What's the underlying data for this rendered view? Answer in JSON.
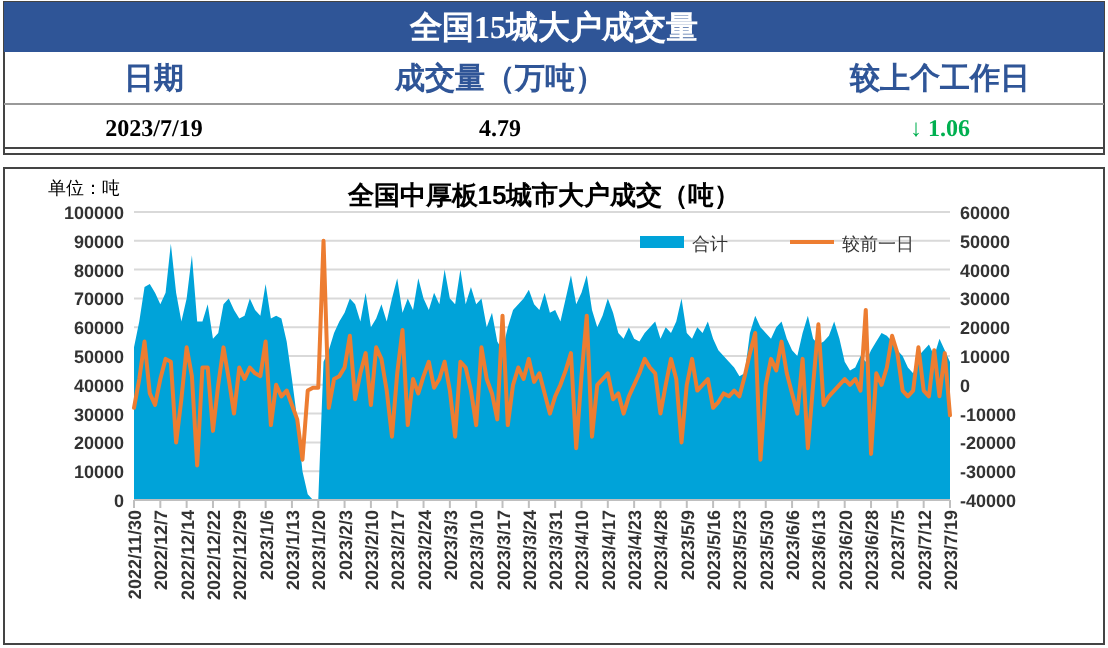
{
  "chart_data": [
    {
      "type": "other",
      "title": "全国15城大户成交量",
      "annotations": [
        "日期",
        "成交量（万吨）",
        "较上个工作日",
        "2023/7/19",
        "4.79",
        "↓ 1.06"
      ]
    },
    {
      "type": "area",
      "title": "全国中厚板15城市大户成交（吨）",
      "ylabel": "单位：吨",
      "categories": [
        "2022/11/30",
        null,
        null,
        null,
        null,
        "2022/12/7",
        null,
        null,
        null,
        null,
        "2022/12/14",
        null,
        null,
        null,
        null,
        "2022/12/22",
        null,
        null,
        null,
        null,
        "2022/12/29",
        null,
        null,
        null,
        null,
        "2023/1/6",
        null,
        null,
        null,
        null,
        "2023/1/13",
        null,
        null,
        null,
        null,
        "2023/1/20",
        null,
        null,
        null,
        null,
        "2023/2/3",
        null,
        null,
        null,
        null,
        "2023/2/10",
        null,
        null,
        null,
        null,
        "2023/2/17",
        null,
        null,
        null,
        null,
        "2023/2/24",
        null,
        null,
        null,
        null,
        "2023/3/3",
        null,
        null,
        null,
        null,
        "2023/3/10",
        null,
        null,
        null,
        null,
        "2023/3/17",
        null,
        null,
        null,
        null,
        "2023/3/24",
        null,
        null,
        null,
        null,
        "2023/3/31",
        null,
        null,
        null,
        null,
        "2023/4/10",
        null,
        null,
        null,
        null,
        "2023/4/17",
        null,
        null,
        null,
        null,
        "2023/4/23",
        null,
        null,
        null,
        null,
        "2023/4/28",
        null,
        null,
        null,
        null,
        "2023/5/9",
        null,
        null,
        null,
        null,
        "2023/5/16",
        null,
        null,
        null,
        null,
        "2023/5/23",
        null,
        null,
        null,
        null,
        "2023/5/30",
        null,
        null,
        null,
        null,
        "2023/6/6",
        null,
        null,
        null,
        null,
        "2023/6/13",
        null,
        null,
        null,
        null,
        "2023/6/20",
        null,
        null,
        null,
        null,
        "2023/6/28",
        null,
        null,
        null,
        null,
        "2023/7/5",
        null,
        null,
        null,
        null,
        "2023/7/12",
        null,
        null,
        null,
        null,
        "2023/7/19"
      ],
      "series": [
        {
          "name": "合计",
          "type": "area",
          "color": "#00a3d9",
          "values": [
            53000,
            62000,
            74000,
            75000,
            72000,
            68000,
            72000,
            89000,
            72000,
            62000,
            70000,
            85000,
            62000,
            62000,
            68000,
            56000,
            58000,
            68000,
            70000,
            66000,
            63000,
            64000,
            70000,
            66000,
            64000,
            75000,
            63000,
            64000,
            63000,
            55000,
            42000,
            28000,
            10000,
            2000,
            0,
            0,
            48000,
            52000,
            58000,
            62000,
            65000,
            70000,
            68000,
            62000,
            72000,
            60000,
            63000,
            68000,
            62000,
            70000,
            77000,
            65000,
            70000,
            66000,
            77000,
            70000,
            66000,
            72000,
            68000,
            80000,
            70000,
            68000,
            80000,
            68000,
            74000,
            68000,
            70000,
            60000,
            65000,
            55000,
            52000,
            60000,
            66000,
            68000,
            70000,
            73000,
            68000,
            66000,
            72000,
            65000,
            66000,
            62000,
            70000,
            78000,
            68000,
            72000,
            78000,
            66000,
            60000,
            64000,
            70000,
            65000,
            58000,
            56000,
            60000,
            56000,
            55000,
            58000,
            60000,
            62000,
            56000,
            60000,
            58000,
            62000,
            70000,
            58000,
            56000,
            60000,
            58000,
            62000,
            56000,
            52000,
            50000,
            48000,
            46000,
            43000,
            44000,
            58000,
            64000,
            60000,
            58000,
            56000,
            60000,
            62000,
            56000,
            52000,
            50000,
            58000,
            64000,
            56000,
            54000,
            55000,
            57000,
            62000,
            56000,
            48000,
            45000,
            46000,
            50000,
            48000,
            52000,
            55000,
            58000,
            57000,
            55000,
            52000,
            50000,
            46000,
            44000,
            50000,
            52000,
            54000,
            50000,
            56000,
            52000,
            47900
          ]
        },
        {
          "name": "较前一日",
          "type": "line",
          "axis": "y2",
          "color": "#ed7d31",
          "values": [
            -8000,
            2000,
            15000,
            -3000,
            -7000,
            2000,
            9000,
            8000,
            -20000,
            -5000,
            13000,
            3000,
            -28000,
            6000,
            6000,
            -16000,
            0,
            13000,
            2000,
            -10000,
            6000,
            2000,
            6000,
            4000,
            3000,
            15000,
            -14000,
            0,
            -4000,
            -2000,
            -7000,
            -12000,
            -26000,
            -2000,
            -1000,
            -1000,
            50000,
            -8000,
            2000,
            3000,
            6000,
            17000,
            -5000,
            4000,
            11000,
            -7000,
            13000,
            9000,
            -2000,
            -18000,
            4000,
            19000,
            -14000,
            2000,
            -3000,
            3000,
            8000,
            -1000,
            2000,
            8000,
            -2000,
            -18000,
            8000,
            6000,
            -2000,
            -14000,
            13000,
            2000,
            -3000,
            -12000,
            24000,
            -14000,
            0,
            6000,
            2000,
            9000,
            1000,
            4000,
            -3000,
            -10000,
            -4000,
            0,
            5000,
            11000,
            -22000,
            3000,
            24000,
            -18000,
            0,
            2000,
            4000,
            -5000,
            -3000,
            -10000,
            -4000,
            0,
            4000,
            9000,
            6000,
            4000,
            -10000,
            0,
            9000,
            2000,
            -20000,
            0,
            9000,
            -2000,
            0,
            2000,
            -8000,
            -6000,
            -3000,
            -4000,
            -2000,
            -4000,
            3000,
            11000,
            18000,
            -26000,
            0,
            9000,
            5000,
            15000,
            4000,
            -3000,
            -10000,
            9000,
            -22000,
            0,
            21000,
            -7000,
            -4000,
            -2000,
            0,
            2000,
            0,
            2000,
            -2000,
            26000,
            -24000,
            4000,
            0,
            6000,
            17000,
            11000,
            -2000,
            -4000,
            -2000,
            13000,
            -2000,
            -4000,
            12000,
            -4000,
            11000,
            -10600
          ]
        }
      ],
      "ylim": [
        0,
        100000
      ],
      "yticks": [
        0,
        10000,
        20000,
        30000,
        40000,
        50000,
        60000,
        70000,
        80000,
        90000,
        100000
      ],
      "y2lim": [
        -40000,
        60000
      ],
      "y2ticks": [
        -40000,
        -30000,
        -20000,
        -10000,
        0,
        10000,
        20000,
        30000,
        40000,
        50000,
        60000
      ],
      "grid": "y",
      "legend": "top right",
      "line_style": "solid"
    }
  ]
}
